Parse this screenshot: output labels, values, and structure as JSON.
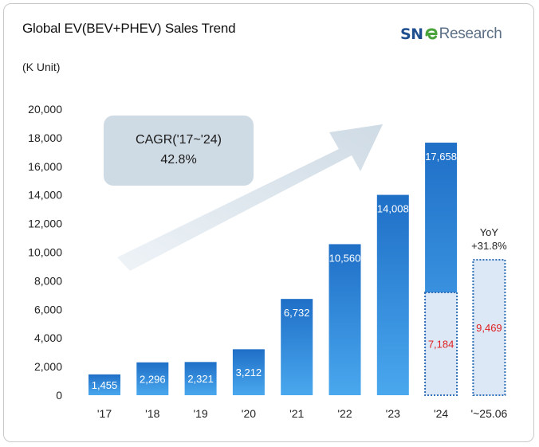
{
  "header": {
    "title": "Global EV(BEV+PHEV) Sales Trend",
    "unit": "(K Unit)",
    "logo_left": "SN",
    "logo_right": "Research",
    "logo_icon": "swirl-e-icon"
  },
  "chart_data": {
    "type": "bar",
    "title": "Global EV(BEV+PHEV) Sales Trend",
    "ylabel": "(K Unit)",
    "ylim": [
      0,
      20000
    ],
    "yticks": [
      0,
      2000,
      4000,
      6000,
      8000,
      10000,
      12000,
      14000,
      16000,
      18000,
      20000
    ],
    "ytick_labels": [
      "0",
      "2,000",
      "4,000",
      "6,000",
      "8,000",
      "10,000",
      "12,000",
      "14,000",
      "16,000",
      "18,000",
      "20,000"
    ],
    "categories": [
      "'17",
      "'18",
      "'19",
      "'20",
      "'21",
      "'22",
      "'23",
      "'24",
      "'~25.06"
    ],
    "values": [
      1455,
      2296,
      2321,
      3212,
      6732,
      10560,
      14008,
      17658,
      null
    ],
    "value_labels": [
      "1,455",
      "2,296",
      "2,321",
      "3,212",
      "6,732",
      "10,560",
      "14,008",
      "17,658",
      ""
    ],
    "partial": {
      "comparison_category": "'24",
      "comparison_value": 7184,
      "comparison_label": "7,184",
      "current_category": "'~25.06",
      "current_value": 9469,
      "current_label": "9,469",
      "yoy_label": "YoY",
      "yoy_value": "+31.8%"
    },
    "annotation": {
      "line1": "CAGR('17~'24)",
      "line2": "42.8%"
    },
    "colors": {
      "bar_top": "#1f6fc7",
      "bar_bottom": "#4aa8ee",
      "partial_fill": "#dde8f7",
      "partial_border": "#2f6fb5",
      "red_label": "#e02020",
      "arrow": "#d6e1ea",
      "callout_fill": "#cfdbe4"
    },
    "grid": false,
    "legend": "none"
  }
}
